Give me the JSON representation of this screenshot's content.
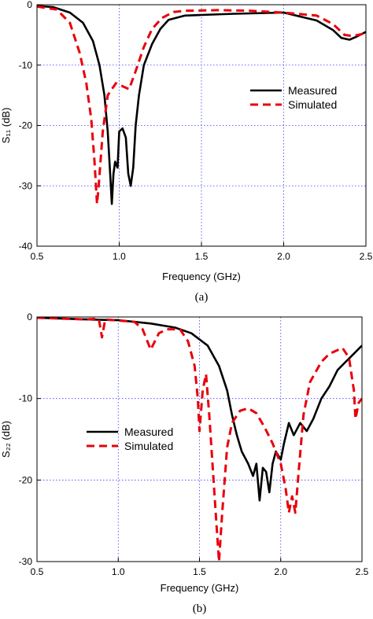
{
  "chart_data": [
    {
      "type": "line",
      "caption": "(a)",
      "xlabel": "Frequency (GHz)",
      "ylabel": "S₁₁ (dB)",
      "xlim": [
        0.5,
        2.5
      ],
      "ylim": [
        -40,
        0
      ],
      "xticks": [
        0.5,
        1.0,
        1.5,
        2.0,
        2.5
      ],
      "xtick_labels": [
        "0.5",
        "1.0",
        "1.5",
        "2.0",
        "2.5"
      ],
      "yticks": [
        -40,
        -30,
        -20,
        -10,
        0
      ],
      "ytick_labels": [
        "-40",
        "-30",
        "-20",
        "-10",
        "0"
      ],
      "grid": true,
      "legend_position": "right-middle",
      "series": [
        {
          "name": "Measured",
          "color": "#000000",
          "style": "solid",
          "points": [
            [
              0.5,
              -0.2
            ],
            [
              0.6,
              -0.4
            ],
            [
              0.7,
              -1.3
            ],
            [
              0.78,
              -3.0
            ],
            [
              0.84,
              -6.0
            ],
            [
              0.88,
              -10.0
            ],
            [
              0.91,
              -15.0
            ],
            [
              0.93,
              -21.0
            ],
            [
              0.945,
              -28.0
            ],
            [
              0.955,
              -33.0
            ],
            [
              0.965,
              -28.0
            ],
            [
              0.975,
              -26.0
            ],
            [
              0.99,
              -27.0
            ],
            [
              1.0,
              -21.0
            ],
            [
              1.02,
              -20.5
            ],
            [
              1.04,
              -22.0
            ],
            [
              1.055,
              -28.0
            ],
            [
              1.07,
              -30.0
            ],
            [
              1.085,
              -27.0
            ],
            [
              1.1,
              -20.0
            ],
            [
              1.12,
              -15.0
            ],
            [
              1.15,
              -10.0
            ],
            [
              1.2,
              -6.5
            ],
            [
              1.25,
              -4.0
            ],
            [
              1.3,
              -2.5
            ],
            [
              1.4,
              -1.8
            ],
            [
              1.5,
              -1.7
            ],
            [
              1.7,
              -1.5
            ],
            [
              2.0,
              -1.3
            ],
            [
              2.2,
              -2.6
            ],
            [
              2.3,
              -4.2
            ],
            [
              2.35,
              -5.5
            ],
            [
              2.4,
              -5.8
            ],
            [
              2.45,
              -5.2
            ],
            [
              2.5,
              -4.5
            ]
          ]
        },
        {
          "name": "Simulated",
          "color": "#e8000a",
          "style": "dashed",
          "points": [
            [
              0.5,
              -0.3
            ],
            [
              0.62,
              -0.8
            ],
            [
              0.7,
              -3.0
            ],
            [
              0.76,
              -8.0
            ],
            [
              0.8,
              -13.0
            ],
            [
              0.83,
              -19.0
            ],
            [
              0.85,
              -26.0
            ],
            [
              0.865,
              -33.0
            ],
            [
              0.875,
              -30.0
            ],
            [
              0.9,
              -21.0
            ],
            [
              0.93,
              -15.0
            ],
            [
              0.98,
              -13.0
            ],
            [
              1.02,
              -13.5
            ],
            [
              1.06,
              -14.0
            ],
            [
              1.1,
              -11.0
            ],
            [
              1.15,
              -7.0
            ],
            [
              1.2,
              -4.0
            ],
            [
              1.26,
              -2.2
            ],
            [
              1.33,
              -1.2
            ],
            [
              1.4,
              -1.0
            ],
            [
              1.6,
              -0.9
            ],
            [
              1.8,
              -1.0
            ],
            [
              2.0,
              -1.3
            ],
            [
              2.2,
              -1.8
            ],
            [
              2.3,
              -3.2
            ],
            [
              2.37,
              -5.0
            ],
            [
              2.42,
              -5.2
            ],
            [
              2.47,
              -4.9
            ],
            [
              2.5,
              -4.6
            ]
          ]
        }
      ]
    },
    {
      "type": "line",
      "caption": "(b)",
      "xlabel": "Frequency (GHz)",
      "ylabel": "S₂₂ (dB)",
      "xlim": [
        0.5,
        2.5
      ],
      "ylim": [
        -30,
        0
      ],
      "xticks": [
        0.5,
        1.0,
        1.5,
        2.0,
        2.5
      ],
      "xtick_labels": [
        "0.5",
        "1.0",
        "1.5",
        "2.0",
        "2.5"
      ],
      "yticks": [
        -30,
        -20,
        -10,
        0
      ],
      "ytick_labels": [
        "-30",
        "-20",
        "-10",
        "0"
      ],
      "grid": true,
      "legend_position": "left-middle",
      "series": [
        {
          "name": "Measured",
          "color": "#000000",
          "style": "solid",
          "points": [
            [
              0.5,
              -0.1
            ],
            [
              0.8,
              -0.3
            ],
            [
              1.0,
              -0.4
            ],
            [
              1.2,
              -0.8
            ],
            [
              1.35,
              -1.3
            ],
            [
              1.45,
              -2.0
            ],
            [
              1.55,
              -3.5
            ],
            [
              1.62,
              -6.0
            ],
            [
              1.67,
              -9.0
            ],
            [
              1.7,
              -12.0
            ],
            [
              1.73,
              -14.5
            ],
            [
              1.76,
              -16.5
            ],
            [
              1.8,
              -18.0
            ],
            [
              1.83,
              -19.5
            ],
            [
              1.85,
              -18.0
            ],
            [
              1.87,
              -22.5
            ],
            [
              1.89,
              -18.5
            ],
            [
              1.91,
              -19.0
            ],
            [
              1.93,
              -21.5
            ],
            [
              1.95,
              -18.0
            ],
            [
              1.97,
              -16.5
            ],
            [
              2.0,
              -17.5
            ],
            [
              2.02,
              -15.5
            ],
            [
              2.05,
              -13.0
            ],
            [
              2.08,
              -14.5
            ],
            [
              2.12,
              -13.0
            ],
            [
              2.16,
              -14.0
            ],
            [
              2.2,
              -12.5
            ],
            [
              2.25,
              -10.0
            ],
            [
              2.3,
              -8.5
            ],
            [
              2.35,
              -6.5
            ],
            [
              2.4,
              -5.5
            ],
            [
              2.45,
              -4.5
            ],
            [
              2.5,
              -3.5
            ]
          ]
        },
        {
          "name": "Simulated",
          "color": "#e8000a",
          "style": "dashed",
          "points": [
            [
              0.5,
              -0.1
            ],
            [
              0.8,
              -0.3
            ],
            [
              0.88,
              -0.2
            ],
            [
              0.9,
              -2.5
            ],
            [
              0.92,
              -0.3
            ],
            [
              1.1,
              -0.6
            ],
            [
              1.15,
              -1.5
            ],
            [
              1.2,
              -4.0
            ],
            [
              1.25,
              -2.0
            ],
            [
              1.3,
              -1.5
            ],
            [
              1.38,
              -1.5
            ],
            [
              1.43,
              -3.0
            ],
            [
              1.47,
              -6.0
            ],
            [
              1.49,
              -10.0
            ],
            [
              1.5,
              -14.0
            ],
            [
              1.52,
              -9.0
            ],
            [
              1.54,
              -7.0
            ],
            [
              1.56,
              -12.0
            ],
            [
              1.58,
              -18.0
            ],
            [
              1.6,
              -24.0
            ],
            [
              1.62,
              -30.0
            ],
            [
              1.64,
              -24.0
            ],
            [
              1.67,
              -16.0
            ],
            [
              1.7,
              -13.0
            ],
            [
              1.75,
              -11.5
            ],
            [
              1.8,
              -11.2
            ],
            [
              1.85,
              -11.8
            ],
            [
              1.9,
              -13.5
            ],
            [
              1.95,
              -15.5
            ],
            [
              2.0,
              -18.0
            ],
            [
              2.03,
              -21.0
            ],
            [
              2.05,
              -24.0
            ],
            [
              2.07,
              -22.0
            ],
            [
              2.09,
              -24.0
            ],
            [
              2.11,
              -19.0
            ],
            [
              2.14,
              -12.0
            ],
            [
              2.18,
              -8.0
            ],
            [
              2.25,
              -5.5
            ],
            [
              2.3,
              -4.5
            ],
            [
              2.38,
              -3.8
            ],
            [
              2.42,
              -5.0
            ],
            [
              2.45,
              -9.0
            ],
            [
              2.46,
              -12.5
            ],
            [
              2.48,
              -10.5
            ],
            [
              2.5,
              -10.0
            ]
          ]
        }
      ]
    }
  ]
}
